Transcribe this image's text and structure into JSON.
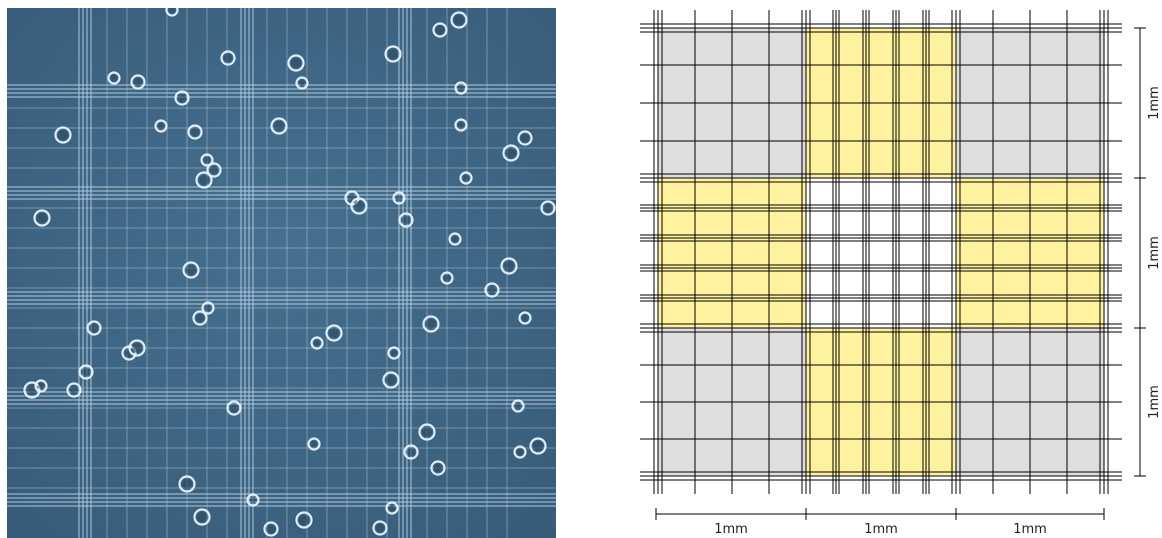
{
  "figure": {
    "micrograph": {
      "background_color": "#3e6584",
      "line_color": "#b9d2e6",
      "cell_color": "#e8f4ff"
    },
    "diagram": {
      "corner_fill": "#dedede",
      "cross_fill": "#fff29e",
      "center_fill": "#ffffff",
      "line_color": "#000000",
      "scale_x_labels": [
        "1mm",
        "1mm",
        "1mm"
      ],
      "scale_y_labels": [
        "1mm",
        "1mm",
        "1mm"
      ]
    }
  }
}
